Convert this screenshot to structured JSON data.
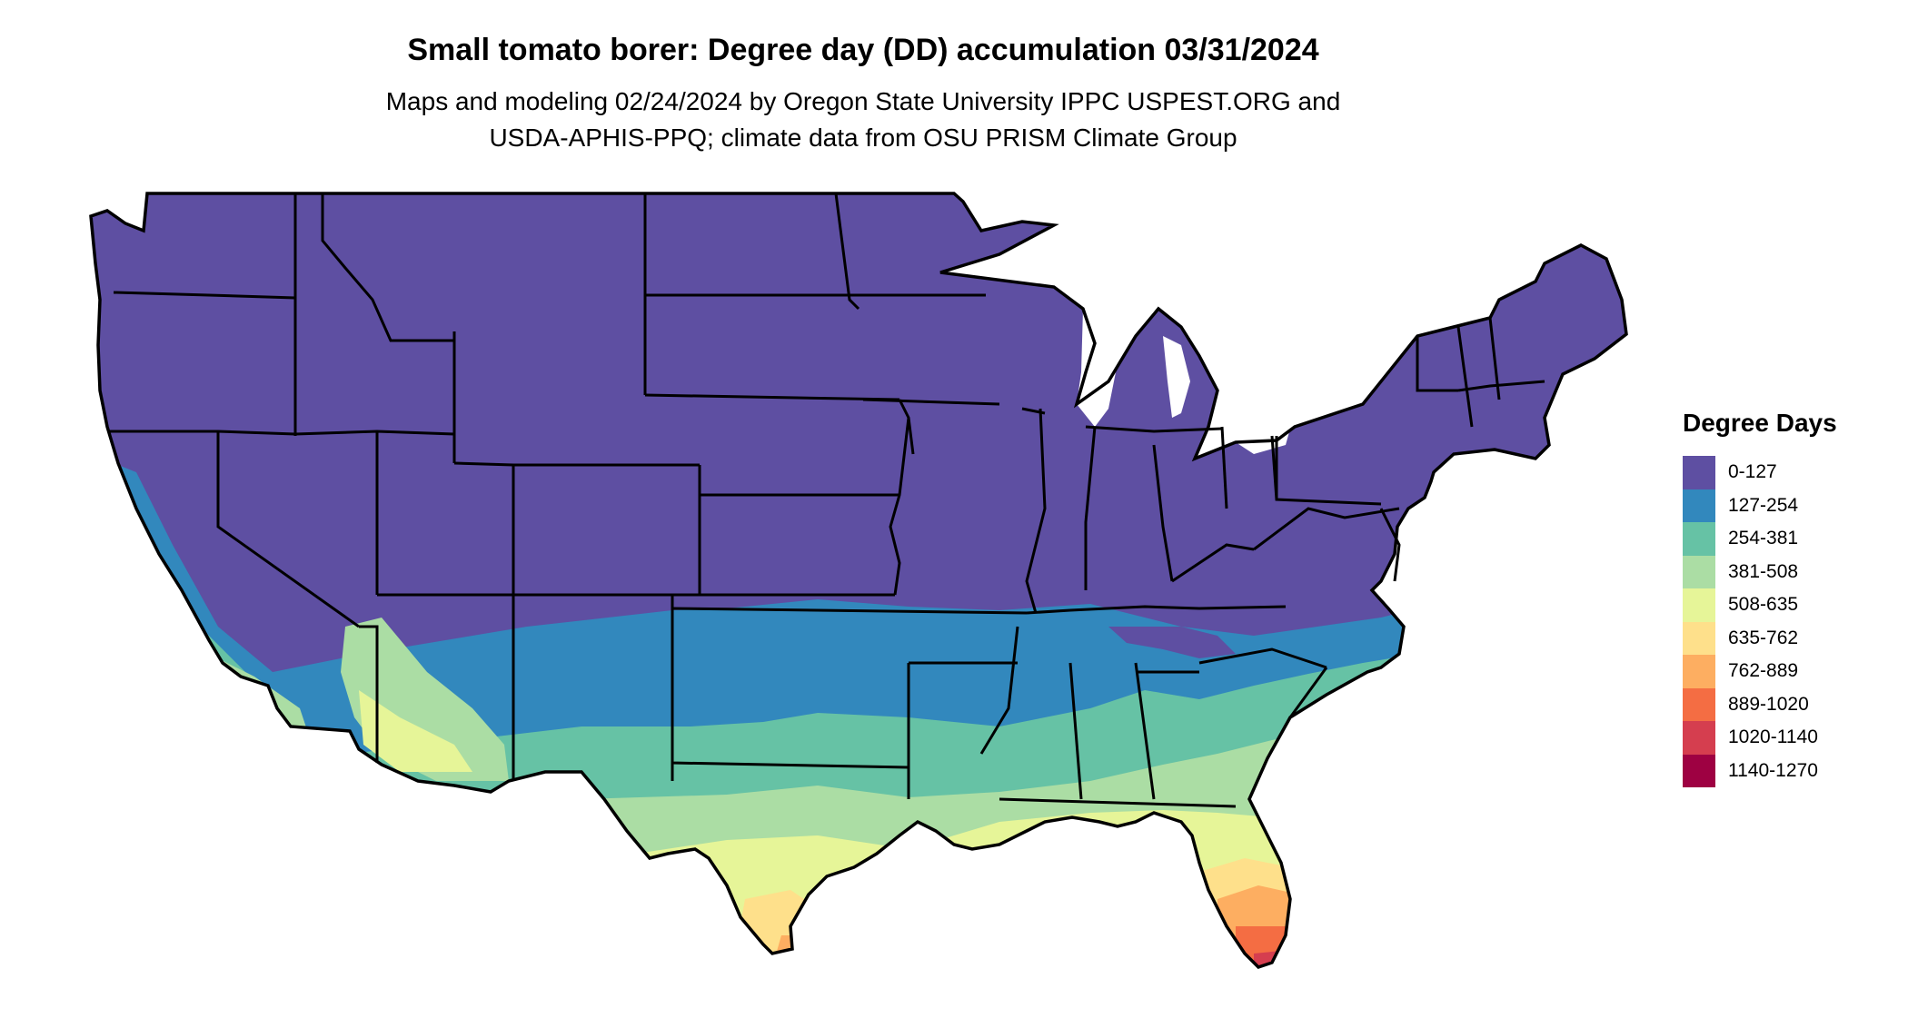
{
  "title": "Small tomato borer: Degree day (DD) accumulation 03/31/2024",
  "subtitle_line1": "Maps and modeling 02/24/2024 by Oregon State University IPPC USPEST.ORG and",
  "subtitle_line2": "USDA-APHIS-PPQ; climate data from OSU PRISM Climate Group",
  "legend": {
    "title": "Degree Days",
    "items": [
      {
        "label": "0-127",
        "color": "#5e4fa2"
      },
      {
        "label": "127-254",
        "color": "#3288bd"
      },
      {
        "label": "254-381",
        "color": "#66c2a5"
      },
      {
        "label": "381-508",
        "color": "#abdda4"
      },
      {
        "label": "508-635",
        "color": "#e6f598"
      },
      {
        "label": "635-762",
        "color": "#fee08b"
      },
      {
        "label": "762-889",
        "color": "#fdae61"
      },
      {
        "label": "889-1020",
        "color": "#f46d43"
      },
      {
        "label": "1020-1140",
        "color": "#d53e4f"
      },
      {
        "label": "1140-1270",
        "color": "#9e0142"
      }
    ]
  }
}
